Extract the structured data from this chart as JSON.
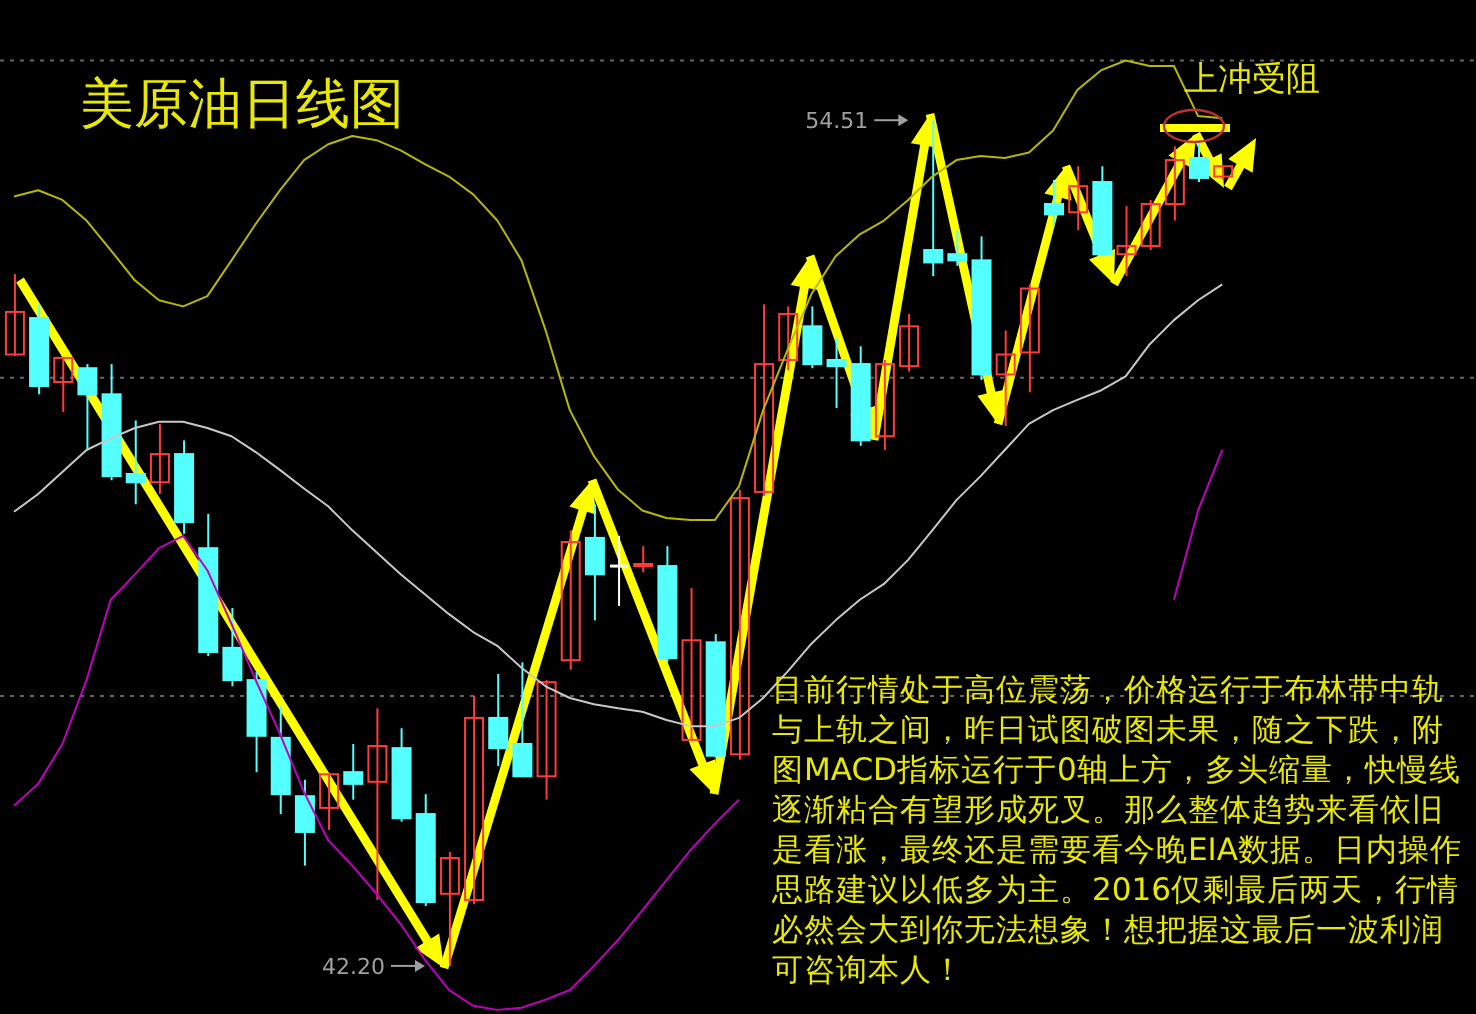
{
  "chart_data": {
    "type": "candlestick",
    "title": "美原油日线图",
    "categories": [
      null,
      null,
      null,
      null,
      null,
      null,
      null,
      null,
      null,
      null,
      null,
      null,
      null,
      null,
      null,
      null,
      null,
      null,
      null,
      null,
      null,
      null,
      null,
      null,
      null,
      null,
      null,
      null,
      null,
      null,
      null,
      null,
      null,
      null,
      null,
      null,
      null,
      null,
      null,
      null,
      null,
      null,
      null,
      null,
      null,
      null,
      null,
      null,
      null,
      null,
      null
    ],
    "ohlc": [
      [
        51.1,
        52.27,
        51.08,
        51.72
      ],
      [
        51.63,
        51.83,
        50.52,
        50.64
      ],
      [
        50.7,
        51.05,
        50.26,
        51.05
      ],
      [
        50.9,
        50.96,
        49.71,
        50.52
      ],
      [
        50.52,
        50.96,
        49.27,
        49.33
      ],
      [
        49.36,
        50.14,
        48.92,
        49.24
      ],
      [
        49.24,
        50.09,
        49.07,
        49.65
      ],
      [
        49.65,
        49.85,
        48.49,
        48.66
      ],
      [
        48.28,
        48.78,
        46.71,
        46.77
      ],
      [
        46.83,
        47.41,
        46.27,
        46.36
      ],
      [
        46.36,
        46.48,
        45.02,
        45.55
      ],
      [
        45.52,
        45.98,
        44.41,
        44.7
      ],
      [
        44.67,
        44.91,
        43.66,
        44.15
      ],
      [
        44.5,
        44.99,
        44.18,
        44.99
      ],
      [
        45.02,
        45.43,
        44.62,
        44.85
      ],
      [
        44.88,
        45.95,
        43.16,
        45.4
      ],
      [
        45.37,
        45.66,
        44.3,
        44.35
      ],
      [
        44.41,
        44.7,
        43.07,
        43.13
      ],
      [
        43.25,
        43.86,
        42.2,
        43.77
      ],
      [
        43.16,
        46.13,
        43.1,
        45.81
      ],
      [
        45.81,
        46.45,
        45.11,
        45.37
      ],
      [
        45.43,
        46.62,
        44.96,
        44.96
      ],
      [
        44.96,
        46.36,
        44.62,
        46.33
      ],
      [
        46.65,
        48.54,
        46.51,
        48.37
      ],
      [
        48.43,
        48.92,
        47.23,
        47.9
      ],
      [
        48.02,
        48.46,
        47.44,
        48.02
      ],
      [
        48.02,
        48.31,
        47.93,
        48.05
      ],
      [
        48.02,
        48.31,
        46.62,
        46.68
      ],
      [
        45.49,
        47.7,
        45.49,
        46.94
      ],
      [
        46.91,
        47.03,
        45.23,
        45.26
      ],
      [
        45.28,
        49.13,
        45.2,
        49.01
      ],
      [
        49.1,
        51.83,
        49.04,
        50.96
      ],
      [
        51.02,
        51.8,
        50.87,
        51.69
      ],
      [
        51.51,
        51.8,
        50.9,
        50.96
      ],
      [
        51.02,
        51.34,
        50.32,
        50.93
      ],
      [
        50.96,
        51.22,
        49.77,
        49.85
      ],
      [
        49.91,
        51.02,
        49.71,
        50.96
      ],
      [
        50.93,
        51.69,
        50.85,
        51.51
      ],
      [
        52.62,
        54.51,
        52.24,
        52.44
      ],
      [
        52.56,
        52.91,
        52.39,
        52.47
      ],
      [
        52.47,
        52.82,
        50.73,
        50.81
      ],
      [
        50.81,
        51.45,
        50.06,
        51.1
      ],
      [
        51.13,
        52.12,
        50.55,
        52.06
      ],
      [
        53.29,
        53.64,
        52.97,
        53.14
      ],
      [
        53.17,
        53.84,
        52.91,
        53.55
      ],
      [
        53.61,
        53.84,
        52.53,
        52.56
      ],
      [
        52.56,
        53.26,
        52.24,
        52.68
      ],
      [
        52.68,
        53.35,
        52.62,
        53.29
      ],
      [
        53.29,
        54.13,
        53.05,
        53.93
      ],
      [
        53.96,
        54.22,
        53.61,
        53.67
      ],
      [
        53.69,
        53.84,
        53.64,
        53.84
      ]
    ],
    "colors": [
      "#ff3b3b",
      "#54ffff",
      "#ff3b3b",
      "#54ffff",
      "#54ffff",
      "#54ffff",
      "#ff3b3b",
      "#54ffff",
      "#54ffff",
      "#54ffff",
      "#54ffff",
      "#54ffff",
      "#54ffff",
      "#ff3b3b",
      "#54ffff",
      "#ff3b3b",
      "#54ffff",
      "#54ffff",
      "#ff3b3b",
      "#ff3b3b",
      "#54ffff",
      "#54ffff",
      "#ff3b3b",
      "#ff3b3b",
      "#54ffff",
      "#ffffff",
      "#ff3b3b",
      "#54ffff",
      "#ff3b3b",
      "#54ffff",
      "#ff3b3b",
      "#ff3b3b",
      "#ff3b3b",
      "#54ffff",
      "#54ffff",
      "#54ffff",
      "#ff3b3b",
      "#ff3b3b",
      "#54ffff",
      "#54ffff",
      "#54ffff",
      "#ff3b3b",
      "#ff3b3b",
      "#54ffff",
      "#ff3b3b",
      "#54ffff",
      "#ff3b3b",
      "#ff3b3b",
      "#ff3b3b",
      "#54ffff",
      "#ff3b3b"
    ],
    "series": [
      {
        "type": "line",
        "color": "#b8b800",
        "values": [
          53.4,
          53.49,
          53.35,
          53.05,
          52.62,
          52.18,
          51.89,
          51.8,
          51.95,
          52.47,
          53.0,
          53.49,
          53.93,
          54.16,
          54.28,
          54.22,
          54.07,
          53.87,
          53.69,
          53.43,
          53.05,
          52.47,
          51.45,
          50.29,
          49.62,
          49.13,
          48.83,
          48.72,
          48.69,
          48.69,
          49.18,
          50.29,
          51.16,
          51.98,
          52.53,
          52.85,
          53.05,
          53.35,
          53.69,
          53.93,
          53.99,
          53.96,
          54.04,
          54.36,
          54.95,
          55.24,
          55.38,
          55.3,
          55.3,
          54.57,
          54.54
        ]
      },
      {
        "type": "line",
        "color": "#c8c8c8",
        "values": [
          48.81,
          49.07,
          49.39,
          49.71,
          49.88,
          50.03,
          50.12,
          50.12,
          50.03,
          49.91,
          49.68,
          49.42,
          49.15,
          48.89,
          48.54,
          48.22,
          47.9,
          47.61,
          47.32,
          47.06,
          46.86,
          46.54,
          46.27,
          46.1,
          46.01,
          45.95,
          45.9,
          45.78,
          45.69,
          45.69,
          45.81,
          46.1,
          46.48,
          46.89,
          47.23,
          47.53,
          47.76,
          48.11,
          48.54,
          48.98,
          49.33,
          49.71,
          50.09,
          50.29,
          50.44,
          50.58,
          50.78,
          51.25,
          51.6,
          51.89,
          52.12
        ]
      },
      {
        "type": "line",
        "color": "#c000c0",
        "values": [
          44.53,
          44.85,
          45.43,
          46.36,
          47.53,
          47.9,
          48.28,
          48.46,
          47.96,
          47.18,
          46.36,
          45.58,
          44.73,
          44.03,
          43.66,
          43.25,
          42.81,
          42.29,
          41.85,
          41.62,
          41.56,
          41.59,
          41.71,
          41.85,
          42.2,
          42.58,
          43.01,
          43.45,
          43.89,
          44.27,
          44.62,
          null,
          null,
          null,
          null,
          null,
          null,
          null,
          null,
          null,
          null,
          null,
          null,
          null,
          null,
          null,
          null,
          null,
          47.53,
          48.83,
          49.71
        ]
      }
    ],
    "ylim": [
      41.5,
      56.26
    ],
    "yticks": [
      {
        "value": 46.13,
        "label": null
      },
      {
        "value": 50.76,
        "label": null
      },
      {
        "value": 55.38,
        "label": null
      }
    ],
    "grid": "y",
    "annotations": [
      "目前行情处于高位震荡，价格运行于布林带中轨与上轨之间，昨日试图破图未果，随之下跌，附图MACD指标运行于0轴上方，多头缩量，快慢线逐渐粘合有望形成死叉。那么整体趋势来看依旧是看涨，最终还是需要看今晚EIA数据。日内操作思路建议以低多为主。2016仅剩最后两天，行情必然会大到你无法想象！想把握这最后一波利润可咨询本人！",
      "上冲受阻",
      "42.20",
      "54.51"
    ]
  }
}
